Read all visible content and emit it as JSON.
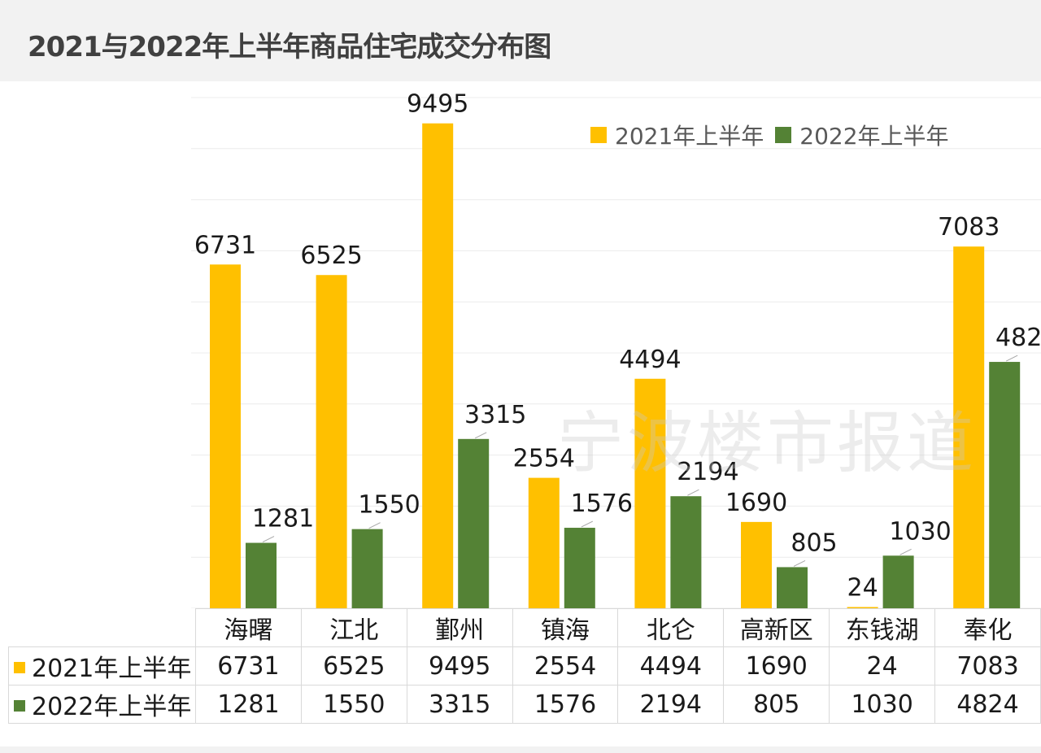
{
  "title": "2021与2022年上半年商品住宅成交分布图",
  "watermark": "宁波楼市报道",
  "colors": {
    "series_2021": "#FFC000",
    "series_2022": "#548235",
    "gridline": "#ececec",
    "label_text": "#1a1a1a"
  },
  "chart_data": {
    "type": "bar",
    "categories": [
      "海曙",
      "江北",
      "鄞州",
      "镇海",
      "北仑",
      "高新区",
      "东钱湖",
      "奉化"
    ],
    "series": [
      {
        "name": "2021年上半年",
        "values": [
          6731,
          6525,
          9495,
          2554,
          4494,
          1690,
          24,
          7083
        ]
      },
      {
        "name": "2022年上半年",
        "values": [
          1281,
          1550,
          3315,
          1576,
          2194,
          805,
          1030,
          4824
        ]
      }
    ],
    "ylim": [
      0,
      10000
    ],
    "grid": true,
    "legend_position": "top-right",
    "data_table": true
  }
}
